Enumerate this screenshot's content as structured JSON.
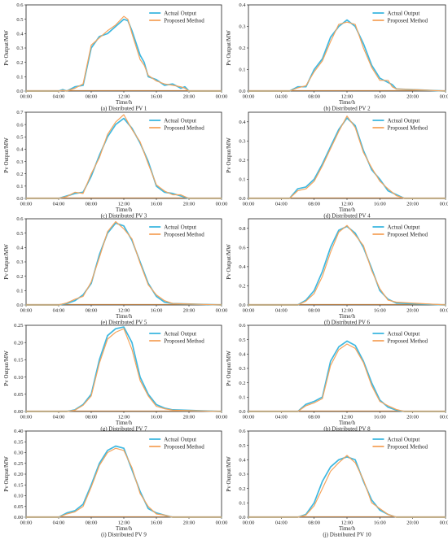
{
  "colors": {
    "actual": "#3fb8e0",
    "proposed": "#f5a45d",
    "axis": "#222222",
    "baseline": "#c08040"
  },
  "legend": {
    "actual": "Actual Output",
    "proposed": "Proposed Method",
    "placement": "top-right"
  },
  "shared": {
    "ylabel": "Pv Output/MW",
    "xlabel": "Time/h",
    "xticks": [
      "00:00",
      "04:00",
      "08:00",
      "12:00",
      "16:00",
      "20:00",
      "00:00"
    ]
  },
  "chart_data": [
    {
      "type": "line",
      "caption": "(a) Distributed PV 1",
      "xlabel": "Time/h",
      "ylabel": "Pv Output/MW",
      "yticks": [
        "0.0",
        "0.1",
        "0.2",
        "0.3",
        "0.4",
        "0.5",
        "0.6"
      ],
      "ylim": [
        0,
        0.6
      ],
      "xlim": [
        0,
        24
      ],
      "grid": false,
      "series": [
        {
          "name": "Actual Output",
          "x": [
            0,
            4,
            4.5,
            5,
            6,
            7,
            8,
            9,
            10,
            11,
            12,
            12.5,
            13,
            14,
            14.5,
            15,
            16,
            17,
            18,
            19,
            19.5,
            20,
            24
          ],
          "y": [
            0,
            0,
            0.01,
            0.0,
            0.03,
            0.04,
            0.3,
            0.38,
            0.4,
            0.45,
            0.5,
            0.49,
            0.42,
            0.25,
            0.2,
            0.1,
            0.08,
            0.04,
            0.05,
            0.02,
            0.03,
            0.0,
            0
          ]
        },
        {
          "name": "Proposed Method",
          "x": [
            0,
            4,
            4.5,
            5,
            6,
            7,
            8,
            9,
            10,
            11,
            12,
            12.5,
            13,
            14,
            14.5,
            15,
            16,
            17,
            18,
            19,
            19.5,
            20,
            24
          ],
          "y": [
            0,
            0,
            0.005,
            0.0,
            0.02,
            0.05,
            0.32,
            0.37,
            0.42,
            0.46,
            0.52,
            0.5,
            0.4,
            0.22,
            0.18,
            0.11,
            0.07,
            0.05,
            0.04,
            0.03,
            0.02,
            0.0,
            0
          ]
        }
      ]
    },
    {
      "type": "line",
      "caption": "(b) Distributed PV 2",
      "xlabel": "Time/h",
      "ylabel": "Pv Output/MW",
      "yticks": [
        "0.0",
        "0.1",
        "0.2",
        "0.3",
        "0.4"
      ],
      "ylim": [
        0,
        0.4
      ],
      "xlim": [
        0,
        24
      ],
      "grid": false,
      "series": [
        {
          "name": "Actual Output",
          "x": [
            0,
            5,
            6,
            7,
            8,
            9,
            10,
            11,
            12,
            13,
            14,
            15,
            16,
            17,
            17.5,
            18,
            24
          ],
          "y": [
            0,
            0,
            0.02,
            0.02,
            0.1,
            0.15,
            0.25,
            0.3,
            0.33,
            0.3,
            0.22,
            0.12,
            0.06,
            0.04,
            0.03,
            0.01,
            0
          ]
        },
        {
          "name": "Proposed Method",
          "x": [
            0,
            5,
            6,
            7,
            8,
            9,
            10,
            11,
            12,
            13,
            14,
            15,
            16,
            17,
            17.5,
            18,
            24
          ],
          "y": [
            0,
            0,
            0.015,
            0.025,
            0.09,
            0.14,
            0.23,
            0.31,
            0.32,
            0.31,
            0.2,
            0.11,
            0.05,
            0.05,
            0.02,
            0.01,
            0
          ]
        }
      ]
    },
    {
      "type": "line",
      "caption": "(c) Distributed PV 3",
      "xlabel": "Time/h",
      "ylabel": "Pv Output/MW",
      "yticks": [
        "0.0",
        "0.1",
        "0.2",
        "0.3",
        "0.4",
        "0.5",
        "0.6",
        "0.7"
      ],
      "ylim": [
        0,
        0.7
      ],
      "xlim": [
        0,
        24
      ],
      "grid": false,
      "series": [
        {
          "name": "Actual Output",
          "x": [
            0,
            4,
            5,
            6,
            7,
            8,
            9,
            10,
            11,
            12,
            13,
            14,
            15,
            16,
            17,
            18,
            19,
            20,
            24
          ],
          "y": [
            0,
            0,
            0.02,
            0.04,
            0.05,
            0.18,
            0.35,
            0.5,
            0.6,
            0.65,
            0.57,
            0.45,
            0.3,
            0.1,
            0.05,
            0.04,
            0.02,
            0.0,
            0
          ]
        },
        {
          "name": "Proposed Method",
          "x": [
            0,
            4,
            5,
            6,
            7,
            8,
            9,
            10,
            11,
            12,
            13,
            14,
            15,
            16,
            17,
            18,
            19,
            20,
            24
          ],
          "y": [
            0,
            0,
            0.015,
            0.05,
            0.04,
            0.2,
            0.33,
            0.52,
            0.62,
            0.68,
            0.56,
            0.46,
            0.28,
            0.11,
            0.06,
            0.03,
            0.03,
            0.0,
            0
          ]
        }
      ]
    },
    {
      "type": "line",
      "caption": "(d) Distributed PV 4",
      "xlabel": "Time/h",
      "ylabel": "Pv Output/MW",
      "yticks": [
        "0.0",
        "0.1",
        "0.2",
        "0.3",
        "0.4"
      ],
      "ylim": [
        0,
        0.45
      ],
      "xlim": [
        0,
        24
      ],
      "grid": false,
      "series": [
        {
          "name": "Actual Output",
          "x": [
            0,
            5,
            6,
            7,
            8,
            9,
            10,
            11,
            12,
            13,
            14,
            15,
            16,
            17,
            18,
            19,
            24
          ],
          "y": [
            0,
            0,
            0.05,
            0.06,
            0.1,
            0.18,
            0.27,
            0.36,
            0.42,
            0.38,
            0.25,
            0.15,
            0.1,
            0.04,
            0.02,
            0.0,
            0
          ]
        },
        {
          "name": "Proposed Method",
          "x": [
            0,
            5,
            6,
            7,
            8,
            9,
            10,
            11,
            12,
            13,
            14,
            15,
            16,
            17,
            18,
            19,
            24
          ],
          "y": [
            0,
            0,
            0.04,
            0.05,
            0.09,
            0.17,
            0.26,
            0.35,
            0.43,
            0.37,
            0.24,
            0.16,
            0.09,
            0.05,
            0.015,
            0.0,
            0
          ]
        }
      ]
    },
    {
      "type": "line",
      "caption": "(e) Distributed PV 5",
      "xlabel": "Time/h",
      "ylabel": "Pv Output/MW",
      "yticks": [
        "0.0",
        "0.1",
        "0.2",
        "0.3",
        "0.4",
        "0.5",
        "0.6"
      ],
      "ylim": [
        0,
        0.6
      ],
      "xlim": [
        0,
        24
      ],
      "grid": false,
      "series": [
        {
          "name": "Actual Output",
          "x": [
            0,
            4,
            5,
            6,
            7,
            8,
            9,
            10,
            11,
            12,
            13,
            14,
            15,
            16,
            17,
            18,
            24
          ],
          "y": [
            0,
            0,
            0.01,
            0.03,
            0.07,
            0.15,
            0.35,
            0.5,
            0.57,
            0.55,
            0.45,
            0.3,
            0.15,
            0.06,
            0.02,
            0.01,
            0
          ]
        },
        {
          "name": "Proposed Method",
          "x": [
            0,
            4,
            5,
            6,
            7,
            8,
            9,
            10,
            11,
            12,
            13,
            14,
            15,
            16,
            17,
            18,
            24
          ],
          "y": [
            0,
            0,
            0.015,
            0.04,
            0.06,
            0.16,
            0.33,
            0.51,
            0.58,
            0.53,
            0.46,
            0.29,
            0.14,
            0.07,
            0.03,
            0.01,
            0
          ]
        }
      ]
    },
    {
      "type": "line",
      "caption": "(f) Distributed PV 6",
      "xlabel": "Time/h",
      "ylabel": "Pv Output/MW",
      "yticks": [
        "0.0",
        "0.2",
        "0.4",
        "0.6",
        "0.8"
      ],
      "ylim": [
        0,
        0.9
      ],
      "xlim": [
        0,
        24
      ],
      "grid": false,
      "series": [
        {
          "name": "Actual Output",
          "x": [
            0,
            6,
            7,
            8,
            9,
            10,
            11,
            12,
            13,
            14,
            15,
            16,
            17,
            18,
            24
          ],
          "y": [
            0,
            0,
            0.05,
            0.15,
            0.35,
            0.6,
            0.78,
            0.82,
            0.75,
            0.6,
            0.38,
            0.15,
            0.06,
            0.02,
            0
          ]
        },
        {
          "name": "Proposed Method",
          "x": [
            0,
            6,
            7,
            8,
            9,
            10,
            11,
            12,
            13,
            14,
            15,
            16,
            17,
            18,
            24
          ],
          "y": [
            0,
            0,
            0.04,
            0.12,
            0.3,
            0.55,
            0.76,
            0.83,
            0.73,
            0.62,
            0.36,
            0.17,
            0.05,
            0.03,
            0
          ]
        }
      ]
    },
    {
      "type": "line",
      "caption": "(g) Distributed PV 7",
      "xlabel": "Time/h",
      "ylabel": "Pv Output/MW",
      "yticks": [
        "0.00",
        "0.05",
        "0.10",
        "0.15",
        "0.20",
        "0.25"
      ],
      "ylim": [
        0,
        0.25
      ],
      "xlim": [
        0,
        24
      ],
      "grid": false,
      "series": [
        {
          "name": "Actual Output",
          "x": [
            0,
            5,
            6,
            7,
            8,
            9,
            10,
            11,
            12,
            13,
            14,
            15,
            16,
            17,
            18,
            24
          ],
          "y": [
            0,
            0,
            0.005,
            0.02,
            0.05,
            0.15,
            0.22,
            0.24,
            0.245,
            0.2,
            0.1,
            0.05,
            0.02,
            0.01,
            0.005,
            0
          ]
        },
        {
          "name": "Proposed Method",
          "x": [
            0,
            5,
            6,
            7,
            8,
            9,
            10,
            11,
            12,
            13,
            14,
            15,
            16,
            17,
            18,
            24
          ],
          "y": [
            0,
            0,
            0.004,
            0.018,
            0.045,
            0.14,
            0.21,
            0.23,
            0.24,
            0.18,
            0.09,
            0.045,
            0.015,
            0.008,
            0.004,
            0
          ]
        }
      ]
    },
    {
      "type": "line",
      "caption": "(h) Distributed PV 8",
      "xlabel": "Time/h",
      "ylabel": "Pv Output/MW",
      "yticks": [
        "0.0",
        "0.1",
        "0.2",
        "0.3",
        "0.4",
        "0.5",
        "0.6"
      ],
      "ylim": [
        0,
        0.6
      ],
      "xlim": [
        0,
        24
      ],
      "grid": false,
      "series": [
        {
          "name": "Actual Output",
          "x": [
            0,
            6,
            7,
            8,
            9,
            10,
            11,
            12,
            13,
            14,
            15,
            16,
            17,
            18,
            19,
            24
          ],
          "y": [
            0,
            0,
            0.05,
            0.07,
            0.1,
            0.35,
            0.45,
            0.49,
            0.46,
            0.35,
            0.2,
            0.08,
            0.03,
            0.01,
            0.0,
            0
          ]
        },
        {
          "name": "Proposed Method",
          "x": [
            0,
            6,
            7,
            8,
            9,
            10,
            11,
            12,
            13,
            14,
            15,
            16,
            17,
            18,
            19,
            24
          ],
          "y": [
            0,
            0,
            0.04,
            0.06,
            0.09,
            0.32,
            0.43,
            0.47,
            0.44,
            0.34,
            0.18,
            0.07,
            0.04,
            0.015,
            0.0,
            0
          ]
        }
      ]
    },
    {
      "type": "line",
      "caption": "(i) Distributed PV 9",
      "xlabel": "Time/h",
      "ylabel": "Pv Output/MW",
      "yticks": [
        "0.00",
        "0.05",
        "0.10",
        "0.15",
        "0.20",
        "0.25",
        "0.30",
        "0.35",
        "0.40"
      ],
      "ylim": [
        0,
        0.4
      ],
      "xlim": [
        0,
        24
      ],
      "grid": false,
      "series": [
        {
          "name": "Actual Output",
          "x": [
            0,
            4,
            5,
            6,
            7,
            8,
            9,
            10,
            11,
            12,
            13,
            14,
            15,
            16,
            17,
            18,
            24
          ],
          "y": [
            0,
            0,
            0.02,
            0.03,
            0.06,
            0.15,
            0.25,
            0.31,
            0.33,
            0.32,
            0.22,
            0.12,
            0.04,
            0.02,
            0.01,
            0.0,
            0
          ]
        },
        {
          "name": "Proposed Method",
          "x": [
            0,
            4,
            5,
            6,
            7,
            8,
            9,
            10,
            11,
            12,
            13,
            14,
            15,
            16,
            17,
            18,
            24
          ],
          "y": [
            0,
            0,
            0.015,
            0.025,
            0.05,
            0.14,
            0.24,
            0.3,
            0.32,
            0.31,
            0.23,
            0.11,
            0.05,
            0.015,
            0.01,
            0.0,
            0
          ]
        }
      ]
    },
    {
      "type": "line",
      "caption": "(j) Distributed PV 10",
      "xlabel": "Time/h",
      "ylabel": "Pv Output/MW",
      "yticks": [
        "0.0",
        "0.1",
        "0.2",
        "0.3",
        "0.4",
        "0.5",
        "0.6"
      ],
      "ylim": [
        0,
        0.6
      ],
      "xlim": [
        0,
        24
      ],
      "grid": false,
      "series": [
        {
          "name": "Actual Output",
          "x": [
            0,
            6,
            7,
            8,
            9,
            10,
            11,
            12,
            13,
            14,
            15,
            16,
            17,
            18,
            24
          ],
          "y": [
            0,
            0,
            0.02,
            0.1,
            0.25,
            0.35,
            0.4,
            0.42,
            0.4,
            0.25,
            0.12,
            0.05,
            0.02,
            0.0,
            0
          ]
        },
        {
          "name": "Proposed Method",
          "x": [
            0,
            6,
            7,
            8,
            9,
            10,
            11,
            12,
            13,
            14,
            15,
            16,
            17,
            18,
            24
          ],
          "y": [
            0,
            0,
            0.015,
            0.08,
            0.2,
            0.32,
            0.38,
            0.43,
            0.38,
            0.26,
            0.1,
            0.06,
            0.02,
            0.0,
            0
          ]
        }
      ]
    }
  ]
}
